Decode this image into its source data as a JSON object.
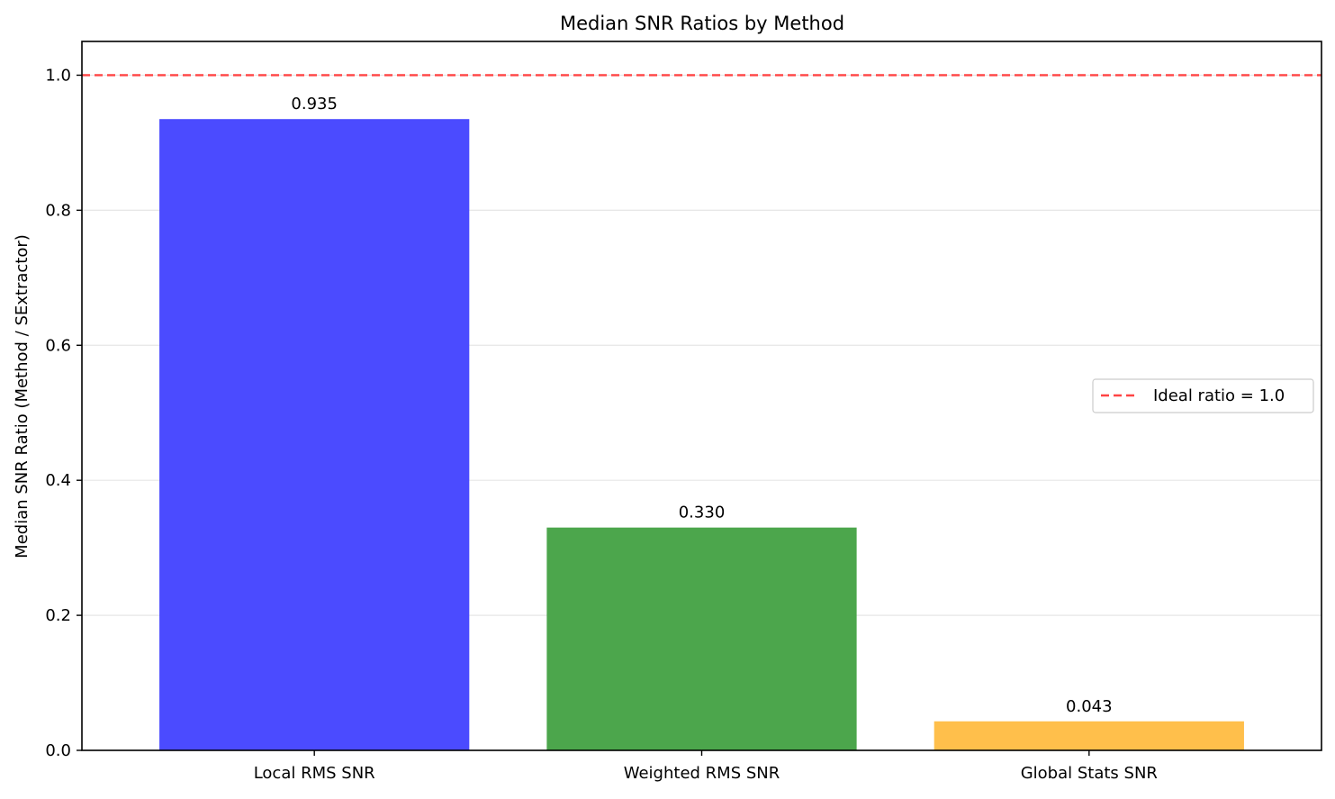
{
  "chart_data": {
    "type": "bar",
    "title": "Median SNR Ratios by Method",
    "xlabel": "",
    "ylabel": "Median SNR Ratio (Method / SExtractor)",
    "categories": [
      "Local RMS SNR",
      "Weighted RMS SNR",
      "Global Stats SNR"
    ],
    "values": [
      0.935,
      0.33,
      0.043
    ],
    "data_labels": [
      "0.935",
      "0.330",
      "0.043"
    ],
    "bar_colors": [
      "#4b4bff",
      "#4ca64c",
      "#ffbf4b"
    ],
    "ylim": [
      0,
      1.05
    ],
    "yticks": [
      0.0,
      0.2,
      0.4,
      0.6,
      0.8,
      1.0
    ],
    "ytick_labels": [
      "0.0",
      "0.2",
      "0.4",
      "0.6",
      "0.8",
      "1.0"
    ],
    "grid": "horizontal",
    "reference_line": {
      "value": 1.0,
      "color": "#ff4444",
      "style": "dashed",
      "label": "Ideal ratio = 1.0"
    },
    "legend": {
      "placement": "center-right",
      "entries": [
        "Ideal ratio = 1.0"
      ]
    }
  }
}
